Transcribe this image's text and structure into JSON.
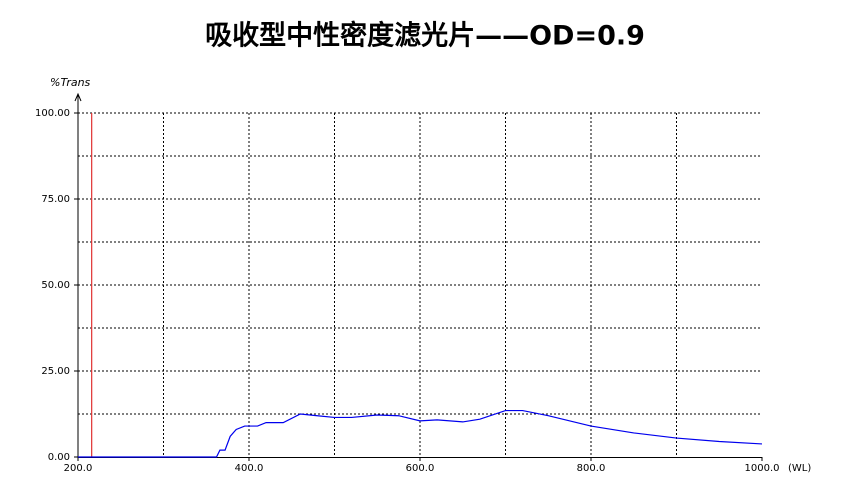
{
  "chart_data": {
    "type": "line",
    "title": "吸收型中性密度滤光片——OD=0.9",
    "ylabel": "%Trans",
    "xlabel": "(WL)",
    "x": [
      200,
      362,
      366,
      372,
      378,
      385,
      395,
      410,
      420,
      440,
      460,
      480,
      500,
      520,
      550,
      575,
      600,
      620,
      650,
      670,
      700,
      720,
      750,
      800,
      850,
      900,
      950,
      1000
    ],
    "values": [
      0,
      0,
      2,
      2,
      6,
      8,
      9,
      9,
      10,
      10,
      12.5,
      12,
      11.5,
      11.5,
      12.2,
      12,
      10.5,
      10.8,
      10.2,
      11,
      13.5,
      13.5,
      12,
      9,
      7,
      5.5,
      4.5,
      3.8
    ],
    "color": "#0000ee",
    "xlim": [
      200,
      1000
    ],
    "ylim": [
      0,
      100
    ],
    "xticks": [
      {
        "value": 200,
        "label": "200.0"
      },
      {
        "value": 400,
        "label": "400.0"
      },
      {
        "value": 600,
        "label": "600.0"
      },
      {
        "value": 800,
        "label": "800.0"
      },
      {
        "value": 1000,
        "label": "1000.0"
      }
    ],
    "yticks": [
      {
        "value": 0,
        "label": "0.00"
      },
      {
        "value": 25,
        "label": "25.00"
      },
      {
        "value": 50,
        "label": "50.00"
      },
      {
        "value": 75,
        "label": "75.00"
      },
      {
        "value": 100,
        "label": "100.00"
      }
    ],
    "xgrid": [
      300,
      400,
      500,
      600,
      700,
      800,
      900
    ],
    "ygrid": [
      12.5,
      25,
      37.5,
      50,
      62.5,
      75,
      87.5,
      100
    ],
    "grid": true,
    "vline": {
      "x": 216,
      "color": "#e03030"
    }
  }
}
